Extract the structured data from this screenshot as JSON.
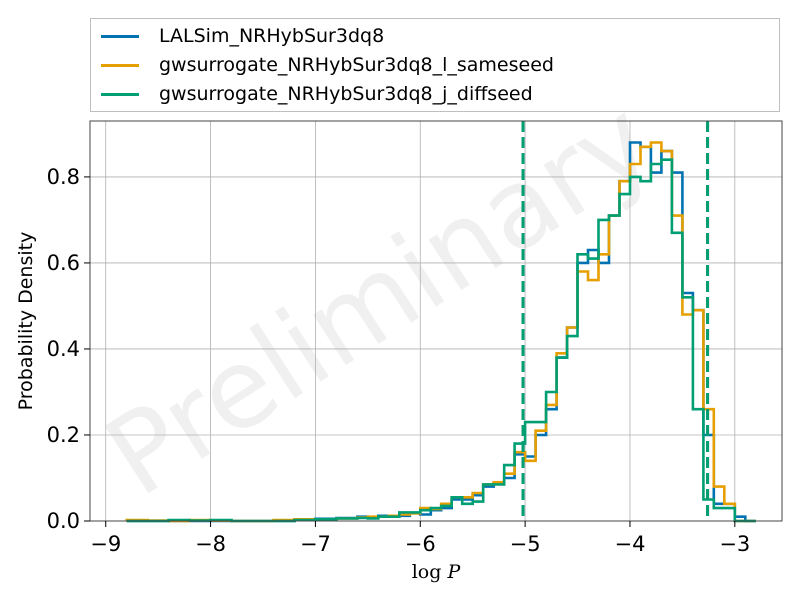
{
  "watermark": "Preliminary",
  "legend": {
    "items": [
      {
        "label": "LALSim_NRHybSur3dq8",
        "color": "#0072B2"
      },
      {
        "label": "gwsurrogate_NRHybSur3dq8_l_sameseed",
        "color": "#E69F00"
      },
      {
        "label": "gwsurrogate_NRHybSur3dq8_j_diffseed",
        "color": "#009E73"
      }
    ]
  },
  "chart_data": {
    "type": "histogram-step",
    "xlabel": "log P",
    "ylabel": "Probability Density",
    "xlim": [
      -9.15,
      -2.55
    ],
    "ylim": [
      0,
      0.93
    ],
    "xticks": [
      -9,
      -8,
      -7,
      -6,
      -5,
      -4,
      -3
    ],
    "xtick_labels": [
      "−9",
      "−8",
      "−7",
      "−6",
      "−5",
      "−4",
      "−3"
    ],
    "yticks": [
      0.0,
      0.2,
      0.4,
      0.6,
      0.8
    ],
    "ytick_labels": [
      "0.0",
      "0.2",
      "0.4",
      "0.6",
      "0.8"
    ],
    "grid": true,
    "vlines": [
      {
        "x": -5.02,
        "colors": [
          "#0072B2",
          "#E69F00",
          "#009E73"
        ],
        "style": "dashed"
      },
      {
        "x": -3.26,
        "colors": [
          "#0072B2",
          "#E69F00",
          "#009E73"
        ],
        "style": "dashed"
      }
    ],
    "series": [
      {
        "name": "LALSim_NRHybSur3dq8",
        "color": "#0072B2",
        "edges": [
          -8.8,
          -8.6,
          -8.4,
          -8.2,
          -8.0,
          -7.8,
          -7.6,
          -7.4,
          -7.2,
          -7.0,
          -6.8,
          -6.6,
          -6.5,
          -6.4,
          -6.3,
          -6.2,
          -6.1,
          -6.0,
          -5.9,
          -5.8,
          -5.7,
          -5.6,
          -5.5,
          -5.4,
          -5.3,
          -5.2,
          -5.1,
          -5.0,
          -4.9,
          -4.8,
          -4.7,
          -4.6,
          -4.5,
          -4.4,
          -4.3,
          -4.2,
          -4.1,
          -4.0,
          -3.9,
          -3.8,
          -3.7,
          -3.6,
          -3.5,
          -3.4,
          -3.3,
          -3.2,
          -3.1,
          -3.0,
          -2.9,
          -2.8
        ],
        "values": [
          0.0,
          0.0,
          0.0,
          0.0,
          0.0,
          0.0,
          0.0,
          0.0,
          0.003,
          0.005,
          0.007,
          0.01,
          0.008,
          0.012,
          0.01,
          0.012,
          0.018,
          0.015,
          0.025,
          0.03,
          0.05,
          0.05,
          0.06,
          0.08,
          0.09,
          0.1,
          0.155,
          0.15,
          0.2,
          0.26,
          0.38,
          0.45,
          0.6,
          0.63,
          0.6,
          0.71,
          0.79,
          0.88,
          0.87,
          0.81,
          0.86,
          0.81,
          0.53,
          0.49,
          0.2,
          0.04,
          0.04,
          0.01,
          0.0
        ]
      },
      {
        "name": "gwsurrogate_NRHybSur3dq8_l_sameseed",
        "color": "#E69F00",
        "edges": [
          -8.8,
          -8.6,
          -8.4,
          -8.2,
          -8.0,
          -7.8,
          -7.6,
          -7.4,
          -7.2,
          -7.0,
          -6.8,
          -6.6,
          -6.5,
          -6.4,
          -6.3,
          -6.2,
          -6.1,
          -6.0,
          -5.9,
          -5.8,
          -5.7,
          -5.6,
          -5.5,
          -5.4,
          -5.3,
          -5.2,
          -5.1,
          -5.0,
          -4.9,
          -4.8,
          -4.7,
          -4.6,
          -4.5,
          -4.4,
          -4.3,
          -4.2,
          -4.1,
          -4.0,
          -3.9,
          -3.8,
          -3.7,
          -3.6,
          -3.5,
          -3.4,
          -3.3,
          -3.2,
          -3.1,
          -3.0,
          -2.9,
          -2.8
        ],
        "values": [
          0.002,
          0.001,
          0.0,
          0.002,
          0.001,
          0.0,
          0.0,
          0.002,
          0.004,
          0.004,
          0.006,
          0.008,
          0.01,
          0.01,
          0.012,
          0.015,
          0.018,
          0.03,
          0.028,
          0.04,
          0.055,
          0.055,
          0.065,
          0.085,
          0.09,
          0.11,
          0.16,
          0.14,
          0.21,
          0.27,
          0.39,
          0.45,
          0.58,
          0.56,
          0.62,
          0.71,
          0.79,
          0.83,
          0.87,
          0.88,
          0.86,
          0.71,
          0.48,
          0.49,
          0.26,
          0.08,
          0.04,
          0.0,
          0.0
        ]
      },
      {
        "name": "gwsurrogate_NRHybSur3dq8_j_diffseed",
        "color": "#009E73",
        "edges": [
          -8.8,
          -8.6,
          -8.4,
          -8.2,
          -8.0,
          -7.8,
          -7.6,
          -7.4,
          -7.2,
          -7.0,
          -6.8,
          -6.6,
          -6.5,
          -6.4,
          -6.3,
          -6.2,
          -6.1,
          -6.0,
          -5.9,
          -5.8,
          -5.7,
          -5.6,
          -5.5,
          -5.4,
          -5.3,
          -5.2,
          -5.1,
          -5.0,
          -4.9,
          -4.8,
          -4.7,
          -4.6,
          -4.5,
          -4.4,
          -4.3,
          -4.2,
          -4.1,
          -4.0,
          -3.9,
          -3.8,
          -3.7,
          -3.6,
          -3.5,
          -3.4,
          -3.3,
          -3.2,
          -3.1,
          -3.0,
          -2.9,
          -2.8
        ],
        "values": [
          0.0,
          0.0,
          0.002,
          0.001,
          0.002,
          0.0,
          0.0,
          0.0,
          0.002,
          0.004,
          0.006,
          0.007,
          0.006,
          0.01,
          0.01,
          0.02,
          0.02,
          0.025,
          0.03,
          0.035,
          0.055,
          0.04,
          0.045,
          0.085,
          0.085,
          0.13,
          0.18,
          0.23,
          0.23,
          0.3,
          0.38,
          0.43,
          0.62,
          0.61,
          0.7,
          0.71,
          0.76,
          0.8,
          0.79,
          0.83,
          0.84,
          0.67,
          0.52,
          0.26,
          0.05,
          0.03,
          0.03,
          0.0,
          0.0
        ]
      }
    ]
  }
}
